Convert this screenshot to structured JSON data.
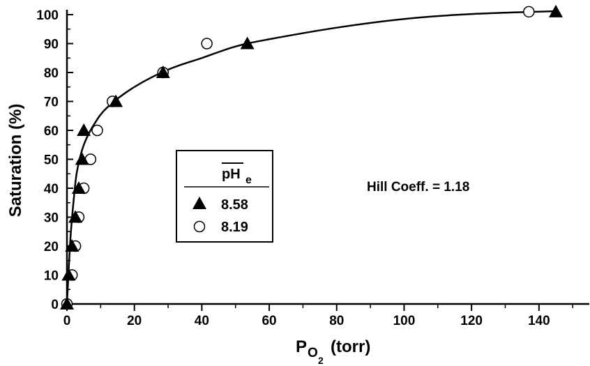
{
  "chart_data": {
    "type": "scatter",
    "xlabel": "P",
    "xlabel_sub": "O",
    "xlabel_subsub": "2",
    "xlabel_unit": "(torr)",
    "ylabel": "Saturation (%)",
    "xlim": [
      0,
      145
    ],
    "ylim": [
      0,
      100
    ],
    "x_ticks": [
      0,
      20,
      40,
      60,
      80,
      100,
      120,
      140
    ],
    "y_ticks": [
      0,
      10,
      20,
      30,
      40,
      50,
      60,
      70,
      80,
      90,
      100
    ],
    "grid": false,
    "legend": {
      "title": "pH",
      "title_sub": "e",
      "placement": "center-left"
    },
    "series": [
      {
        "name": "8.58",
        "marker": "filled-triangle",
        "points": [
          {
            "x": 0,
            "y": 0
          },
          {
            "x": 0.5,
            "y": 10
          },
          {
            "x": 1.5,
            "y": 20
          },
          {
            "x": 2.5,
            "y": 30
          },
          {
            "x": 3.5,
            "y": 40
          },
          {
            "x": 4.5,
            "y": 50
          },
          {
            "x": 5,
            "y": 60
          },
          {
            "x": 14.5,
            "y": 70
          },
          {
            "x": 28.5,
            "y": 80
          },
          {
            "x": 53.5,
            "y": 90
          },
          {
            "x": 145,
            "y": 101
          }
        ]
      },
      {
        "name": "8.19",
        "marker": "open-circle",
        "points": [
          {
            "x": 0,
            "y": 0
          },
          {
            "x": 1.5,
            "y": 10
          },
          {
            "x": 2.5,
            "y": 20
          },
          {
            "x": 3.5,
            "y": 30
          },
          {
            "x": 5,
            "y": 40
          },
          {
            "x": 7,
            "y": 50
          },
          {
            "x": 9,
            "y": 60
          },
          {
            "x": 13.5,
            "y": 70
          },
          {
            "x": 28.5,
            "y": 80
          },
          {
            "x": 41.5,
            "y": 90
          },
          {
            "x": 137,
            "y": 101
          }
        ]
      }
    ],
    "fit_curve": {
      "points": [
        {
          "x": 0,
          "y": 0
        },
        {
          "x": 1,
          "y": 22
        },
        {
          "x": 2,
          "y": 36
        },
        {
          "x": 3,
          "y": 46
        },
        {
          "x": 5,
          "y": 55
        },
        {
          "x": 8,
          "y": 62
        },
        {
          "x": 12,
          "y": 68
        },
        {
          "x": 20,
          "y": 75
        },
        {
          "x": 30,
          "y": 81
        },
        {
          "x": 40,
          "y": 85
        },
        {
          "x": 50,
          "y": 89
        },
        {
          "x": 60,
          "y": 91.5
        },
        {
          "x": 80,
          "y": 95.5
        },
        {
          "x": 100,
          "y": 98.5
        },
        {
          "x": 120,
          "y": 100.2
        },
        {
          "x": 145,
          "y": 101.2
        }
      ]
    },
    "annotation": "Hill Coeff.  =  1.18"
  }
}
